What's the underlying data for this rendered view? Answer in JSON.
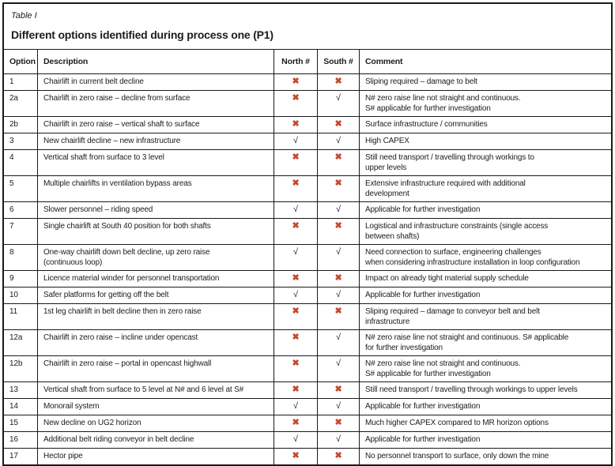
{
  "caption": "Table I",
  "title": "Different options identified during process one (P1)",
  "columns": {
    "option": "Option",
    "description": "Description",
    "north": "North #",
    "south": "South #",
    "comment": "Comment"
  },
  "marks": {
    "yes": {
      "glyph": "√",
      "name": "check-icon",
      "color": "#1a1a1a"
    },
    "no": {
      "glyph": "✖",
      "name": "cross-icon",
      "color": "#c6482e"
    }
  },
  "rows": [
    {
      "option": "1",
      "description": "Chairlift in current belt decline",
      "north": "no",
      "south": "no",
      "comment": "Sliping required – damage to belt"
    },
    {
      "option": "2a",
      "description": "Chairlift in zero raise – decline from surface",
      "north": "no",
      "south": "yes",
      "comment": "N# zero raise line not straight and continuous.\nS# applicable for further investigation"
    },
    {
      "option": "2b",
      "description": "Chairlift in zero raise – vertical shaft to surface",
      "north": "no",
      "south": "no",
      "comment": "Surface infrastructure / communities"
    },
    {
      "option": "3",
      "description": "New chairlift decline – new infrastructure",
      "north": "yes",
      "south": "yes",
      "comment": "High CAPEX"
    },
    {
      "option": "4",
      "description": "Vertical shaft from surface to 3 level",
      "north": "no",
      "south": "no",
      "comment": "Still need transport / travelling through workings to\nupper levels"
    },
    {
      "option": "5",
      "description": "Multiple chairlifts in ventilation bypass areas",
      "north": "no",
      "south": "no",
      "comment": "Extensive infrastructure required with additional\ndevelopment"
    },
    {
      "option": "6",
      "description": "Slower personnel – riding speed",
      "north": "yes",
      "south": "yes",
      "comment": "Applicable for further investigation"
    },
    {
      "option": "7",
      "description": "Single chairlift at South 40 position for both shafts",
      "north": "no",
      "south": "no",
      "comment": "Logistical and infrastructure constraints (single access\nbetween shafts)"
    },
    {
      "option": "8",
      "description": "One-way chairlift down belt decline, up zero raise\n(continuous loop)",
      "north": "yes",
      "south": "yes",
      "comment": "Need connection to surface, engineering challenges\nwhen considering infrastructure installation in loop configuration"
    },
    {
      "option": "9",
      "description": "Licence material winder for personnel transportation",
      "north": "no",
      "south": "no",
      "comment": "Impact on already tight material supply schedule"
    },
    {
      "option": "10",
      "description": "Safer platforms for getting off the belt",
      "north": "yes",
      "south": "yes",
      "comment": "Applicable for further investigation"
    },
    {
      "option": "11",
      "description": "1st leg chairlift in belt decline then in zero raise",
      "north": "no",
      "south": "no",
      "comment": "Sliping required – damage to conveyor belt and belt\ninfrastructure"
    },
    {
      "option": "12a",
      "description": "Chairlift in zero raise – incline under opencast",
      "north": "no",
      "south": "yes",
      "comment": "N# zero raise line not straight and continuous. S# applicable\nfor further investigation"
    },
    {
      "option": "12b",
      "description": "Chairlift in zero raise – portal in opencast highwall",
      "north": "no",
      "south": "yes",
      "comment": "N# zero raise line not straight and continuous.\nS# applicable for further investigation"
    },
    {
      "option": "13",
      "description": "Vertical shaft from surface to 5 level at N# and 6 level at S#",
      "north": "no",
      "south": "no",
      "comment": "Still need transport / travelling through workings to upper levels"
    },
    {
      "option": "14",
      "description": "Monorail system",
      "north": "yes",
      "south": "yes",
      "comment": "Applicable for further investigation"
    },
    {
      "option": "15",
      "description": "New decline on UG2 horizon",
      "north": "no",
      "south": "no",
      "comment": "Much higher CAPEX compared to MR horizon options"
    },
    {
      "option": "16",
      "description": "Additional belt riding conveyor in belt decline",
      "north": "yes",
      "south": "yes",
      "comment": "Applicable for further investigation"
    },
    {
      "option": "17",
      "description": "Hector pipe",
      "north": "no",
      "south": "no",
      "comment": "No personnel transport to surface, only down the mine"
    }
  ]
}
